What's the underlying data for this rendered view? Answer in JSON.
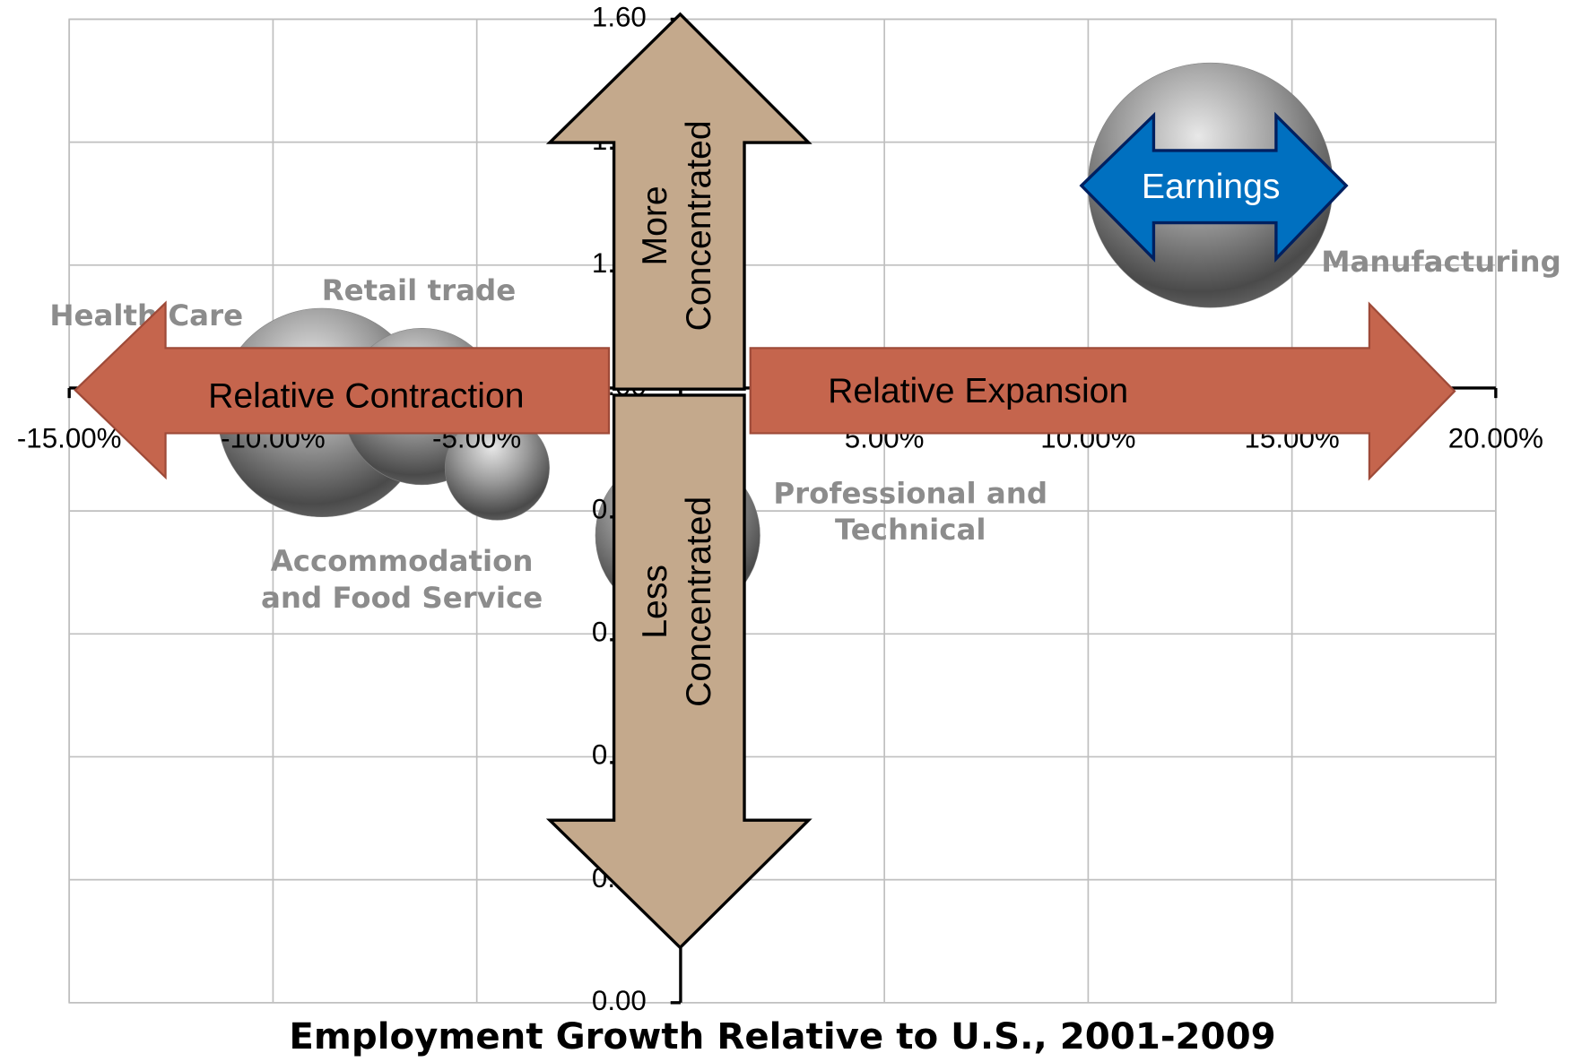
{
  "chart_data": {
    "type": "bubble",
    "x_label": "Employment Growth Relative to U.S., 2001-2009",
    "categories": [
      "Manufacturing",
      "Health Care",
      "Retail trade",
      "Accommodation\nand Food Service",
      "Professional and\nTechnical"
    ],
    "x": [
      13.0,
      -8.8,
      -6.35,
      -4.5,
      -0.07
    ],
    "values": [
      1.33,
      0.96,
      0.97,
      0.87,
      0.76
    ],
    "sizes": [
      100,
      72.7,
      40.9,
      18.2,
      45.2
    ],
    "color": "#808080",
    "xlim": [
      -15,
      20
    ],
    "xticks": [
      {
        "value": -15,
        "label": "-15.00%"
      },
      {
        "value": -10,
        "label": "-10.00%"
      },
      {
        "value": -5,
        "label": "-5.00%"
      },
      {
        "value": 0,
        "label": "0.00%"
      },
      {
        "value": 5,
        "label": "5.00%"
      },
      {
        "value": 10,
        "label": "10.00%"
      },
      {
        "value": 15,
        "label": "15.00%"
      },
      {
        "value": 20,
        "label": "20.00%"
      }
    ],
    "ylim": [
      0,
      1.6
    ],
    "yticks": [
      {
        "value": 0,
        "label": "0.00"
      },
      {
        "value": 0.2,
        "label": "0.20"
      },
      {
        "value": 0.4,
        "label": "0.40"
      },
      {
        "value": 0.6,
        "label": "0.60"
      },
      {
        "value": 0.8,
        "label": "0.80"
      },
      {
        "value": 1.0,
        "label": "1.00"
      },
      {
        "value": 1.2,
        "label": "1.20"
      },
      {
        "value": 1.4,
        "label": "1.40"
      },
      {
        "value": 1.6,
        "label": "1.60"
      }
    ],
    "x_axis_crosses": 1.0,
    "grid": true,
    "annotations": [
      "Relative Contraction",
      "Relative Expansion",
      "More\nConcentrated",
      "Less\nConcentrated",
      "Earnings"
    ]
  }
}
